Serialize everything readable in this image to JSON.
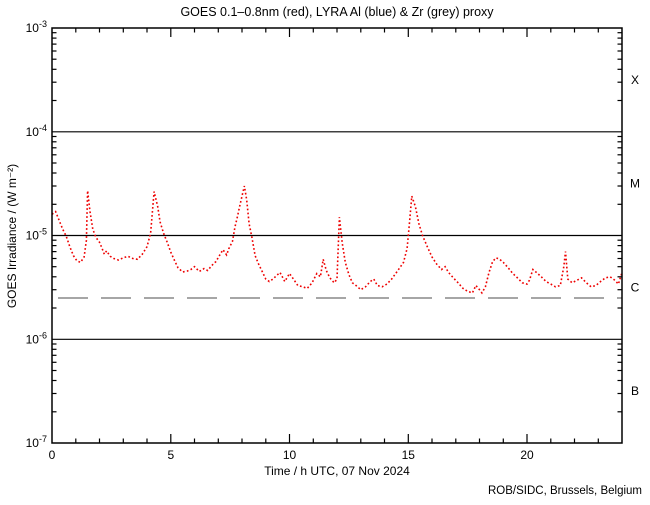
{
  "page": {
    "credit": "ROB/SIDC, Brussels, Belgium"
  },
  "chart_data": {
    "type": "line",
    "title": "GOES 0.1–0.8nm (red), LYRA Al (blue) & Zr (grey) proxy",
    "xlabel": "Time / h UTC, 07 Nov 2024",
    "ylabel": "GOES Irradiance / (W m⁻²)",
    "x_range": [
      0,
      24
    ],
    "x_major_ticks": [
      0,
      5,
      10,
      15,
      20
    ],
    "x_minor_tick_step": 1,
    "y_scale": "log",
    "y_range": [
      1e-07,
      0.001
    ],
    "grid": "horizontal-decade-lines",
    "grid_hlines": [
      0.0001,
      1e-05,
      1e-06
    ],
    "y_decade_ticks": [
      {
        "label_base": "10",
        "label_exp": "-3",
        "value": 0.001
      },
      {
        "label_base": "10",
        "label_exp": "-4",
        "value": 0.0001
      },
      {
        "label_base": "10",
        "label_exp": "-5",
        "value": 1e-05
      },
      {
        "label_base": "10",
        "label_exp": "-6",
        "value": 1e-06
      },
      {
        "label_base": "10",
        "label_exp": "-7",
        "value": 1e-07
      }
    ],
    "flare_class_labels": [
      {
        "label": "X",
        "value": 0.000316
      },
      {
        "label": "M",
        "value": 3.16e-05
      },
      {
        "label": "C",
        "value": 3.16e-06
      },
      {
        "label": "B",
        "value": 3.16e-07
      }
    ],
    "reference_line": {
      "name": "grey-dashed-level",
      "value": 2.5e-06,
      "color": "#999999",
      "style": "long-dash"
    },
    "series": [
      {
        "name": "GOES 0.1-0.8nm",
        "color": "#ee0000",
        "style": "dotted",
        "points": [
          [
            0.0,
            1.6e-05
          ],
          [
            0.15,
            1.7e-05
          ],
          [
            0.3,
            1.4e-05
          ],
          [
            0.45,
            1.15e-05
          ],
          [
            0.6,
            9.8e-06
          ],
          [
            0.75,
            7.8e-06
          ],
          [
            0.9,
            6.4e-06
          ],
          [
            1.05,
            5.7e-06
          ],
          [
            1.2,
            5.5e-06
          ],
          [
            1.35,
            6.2e-06
          ],
          [
            1.45,
            9e-06
          ],
          [
            1.5,
            2.7e-05
          ],
          [
            1.6,
            1.7e-05
          ],
          [
            1.72,
            1.15e-05
          ],
          [
            1.85,
            9.6e-06
          ],
          [
            2.0,
            8.6e-06
          ],
          [
            2.1,
            7.6e-06
          ],
          [
            2.2,
            6.6e-06
          ],
          [
            2.3,
            7.1e-06
          ],
          [
            2.45,
            6.3e-06
          ],
          [
            2.6,
            6e-06
          ],
          [
            2.8,
            5.8e-06
          ],
          [
            3.0,
            6.1e-06
          ],
          [
            3.2,
            6.3e-06
          ],
          [
            3.4,
            6e-06
          ],
          [
            3.6,
            5.9e-06
          ],
          [
            3.8,
            6.6e-06
          ],
          [
            4.0,
            7.8e-06
          ],
          [
            4.15,
            1.05e-05
          ],
          [
            4.3,
            2.65e-05
          ],
          [
            4.45,
            1.9e-05
          ],
          [
            4.55,
            1.35e-05
          ],
          [
            4.7,
            1.05e-05
          ],
          [
            4.85,
            8.6e-06
          ],
          [
            5.0,
            6.9e-06
          ],
          [
            5.15,
            5.8e-06
          ],
          [
            5.3,
            4.9e-06
          ],
          [
            5.5,
            4.45e-06
          ],
          [
            5.7,
            4.55e-06
          ],
          [
            5.85,
            4.7e-06
          ],
          [
            6.0,
            5e-06
          ],
          [
            6.2,
            4.5e-06
          ],
          [
            6.4,
            4.8e-06
          ],
          [
            6.55,
            4.6e-06
          ],
          [
            6.75,
            5.2e-06
          ],
          [
            6.9,
            5.6e-06
          ],
          [
            7.05,
            6.4e-06
          ],
          [
            7.2,
            7.3e-06
          ],
          [
            7.35,
            6.5e-06
          ],
          [
            7.45,
            7.5e-06
          ],
          [
            7.6,
            8.8e-06
          ],
          [
            7.7,
            1.2e-05
          ],
          [
            7.8,
            1.5e-05
          ],
          [
            7.9,
            1.9e-05
          ],
          [
            8.0,
            2.4e-05
          ],
          [
            8.1,
            3e-05
          ],
          [
            8.2,
            2.2e-05
          ],
          [
            8.3,
            1.3e-05
          ],
          [
            8.42,
            9.5e-06
          ],
          [
            8.55,
            6.4e-06
          ],
          [
            8.7,
            5.3e-06
          ],
          [
            8.85,
            4.5e-06
          ],
          [
            9.0,
            3.8e-06
          ],
          [
            9.15,
            3.6e-06
          ],
          [
            9.3,
            3.8e-06
          ],
          [
            9.45,
            4.1e-06
          ],
          [
            9.6,
            4.4e-06
          ],
          [
            9.8,
            3.6e-06
          ],
          [
            10.0,
            4.3e-06
          ],
          [
            10.2,
            3.7e-06
          ],
          [
            10.35,
            3.3e-06
          ],
          [
            10.55,
            3.2e-06
          ],
          [
            10.75,
            3.1e-06
          ],
          [
            10.95,
            3.5e-06
          ],
          [
            11.15,
            4.3e-06
          ],
          [
            11.3,
            4e-06
          ],
          [
            11.42,
            5.9e-06
          ],
          [
            11.55,
            4.6e-06
          ],
          [
            11.7,
            3.9e-06
          ],
          [
            11.88,
            3.5e-06
          ],
          [
            12.0,
            3.8e-06
          ],
          [
            12.1,
            1.5e-05
          ],
          [
            12.22,
            8.5e-06
          ],
          [
            12.35,
            5.5e-06
          ],
          [
            12.5,
            4.2e-06
          ],
          [
            12.65,
            3.5e-06
          ],
          [
            12.8,
            3.3e-06
          ],
          [
            13.0,
            3e-06
          ],
          [
            13.2,
            3.2e-06
          ],
          [
            13.4,
            3.6e-06
          ],
          [
            13.55,
            3.8e-06
          ],
          [
            13.7,
            3.3e-06
          ],
          [
            13.9,
            3.2e-06
          ],
          [
            14.1,
            3.4e-06
          ],
          [
            14.3,
            3.8e-06
          ],
          [
            14.5,
            4.4e-06
          ],
          [
            14.65,
            4.9e-06
          ],
          [
            14.8,
            5.5e-06
          ],
          [
            14.95,
            7.5e-06
          ],
          [
            15.05,
            1.3e-05
          ],
          [
            15.15,
            2.4e-05
          ],
          [
            15.3,
            1.9e-05
          ],
          [
            15.45,
            1.3e-05
          ],
          [
            15.6,
            1e-05
          ],
          [
            15.8,
            7.8e-06
          ],
          [
            16.0,
            6.2e-06
          ],
          [
            16.2,
            5.3e-06
          ],
          [
            16.4,
            4.7e-06
          ],
          [
            16.55,
            5e-06
          ],
          [
            16.7,
            4.4e-06
          ],
          [
            16.9,
            3.9e-06
          ],
          [
            17.1,
            3.5e-06
          ],
          [
            17.3,
            3.1e-06
          ],
          [
            17.5,
            2.9e-06
          ],
          [
            17.7,
            2.8e-06
          ],
          [
            17.85,
            3.3e-06
          ],
          [
            18.0,
            3e-06
          ],
          [
            18.1,
            2.8e-06
          ],
          [
            18.25,
            3.2e-06
          ],
          [
            18.4,
            4.4e-06
          ],
          [
            18.55,
            5.6e-06
          ],
          [
            18.7,
            6.1e-06
          ],
          [
            18.85,
            5.9e-06
          ],
          [
            19.0,
            5.5e-06
          ],
          [
            19.2,
            4.9e-06
          ],
          [
            19.4,
            4.3e-06
          ],
          [
            19.6,
            3.9e-06
          ],
          [
            19.8,
            3.5e-06
          ],
          [
            20.0,
            3.4e-06
          ],
          [
            20.1,
            3.7e-06
          ],
          [
            20.25,
            4.7e-06
          ],
          [
            20.4,
            4.4e-06
          ],
          [
            20.6,
            4e-06
          ],
          [
            20.8,
            3.6e-06
          ],
          [
            21.0,
            3.4e-06
          ],
          [
            21.2,
            3.2e-06
          ],
          [
            21.4,
            3.3e-06
          ],
          [
            21.55,
            5e-06
          ],
          [
            21.62,
            7e-06
          ],
          [
            21.72,
            3.8e-06
          ],
          [
            21.9,
            3.5e-06
          ],
          [
            22.1,
            3.7e-06
          ],
          [
            22.3,
            3.9e-06
          ],
          [
            22.5,
            3.5e-06
          ],
          [
            22.7,
            3.2e-06
          ],
          [
            22.9,
            3.3e-06
          ],
          [
            23.1,
            3.6e-06
          ],
          [
            23.3,
            3.9e-06
          ],
          [
            23.5,
            4e-06
          ],
          [
            23.7,
            3.7e-06
          ],
          [
            23.85,
            3.4e-06
          ],
          [
            24.0,
            4.4e-06
          ]
        ]
      }
    ]
  }
}
